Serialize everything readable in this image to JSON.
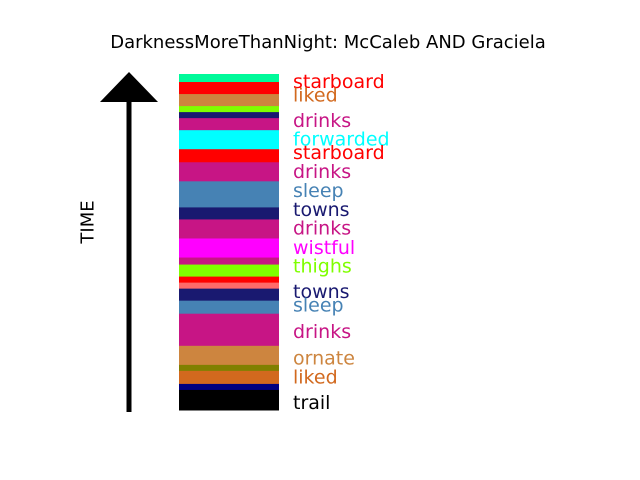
{
  "title": "DarknessMoreThanNight: McCaleb AND Graciela",
  "axis_label": "TIME",
  "bands": [
    {
      "color": "#00FA9A",
      "weight": 8
    },
    {
      "color": "#FF0000",
      "weight": 12
    },
    {
      "color": "#CD853F",
      "weight": 12
    },
    {
      "color": "#7FFF00",
      "weight": 6
    },
    {
      "color": "#191970",
      "weight": 6
    },
    {
      "color": "#C71585",
      "weight": 12
    },
    {
      "color": "#00FFFF",
      "weight": 19
    },
    {
      "color": "#FF0000",
      "weight": 13
    },
    {
      "color": "#C71585",
      "weight": 19
    },
    {
      "color": "#4682B4",
      "weight": 26
    },
    {
      "color": "#191970",
      "weight": 12
    },
    {
      "color": "#C71585",
      "weight": 19
    },
    {
      "color": "#FF00FF",
      "weight": 19
    },
    {
      "color": "#C71585",
      "weight": 7
    },
    {
      "color": "#7FFF00",
      "weight": 12
    },
    {
      "color": "#FF0000",
      "weight": 6
    },
    {
      "color": "#FF6A6A",
      "weight": 6
    },
    {
      "color": "#191970",
      "weight": 12
    },
    {
      "color": "#4682B4",
      "weight": 13
    },
    {
      "color": "#C71585",
      "weight": 32
    },
    {
      "color": "#CD853F",
      "weight": 19
    },
    {
      "color": "#808000",
      "weight": 6
    },
    {
      "color": "#D2691E",
      "weight": 13
    },
    {
      "color": "#000080",
      "weight": 6
    },
    {
      "color": "#000000",
      "weight": 20
    }
  ],
  "words": [
    {
      "text": "starboard",
      "color": "#FF0000",
      "pos": 0.025
    },
    {
      "text": "liked",
      "color": "#D2691E",
      "pos": 0.065
    },
    {
      "text": "drinks",
      "color": "#C71585",
      "pos": 0.142
    },
    {
      "text": "forwarded",
      "color": "#00FFFF",
      "pos": 0.197
    },
    {
      "text": "starboard",
      "color": "#FF0000",
      "pos": 0.236
    },
    {
      "text": "drinks",
      "color": "#C71585",
      "pos": 0.293
    },
    {
      "text": "sleep",
      "color": "#4682B4",
      "pos": 0.35
    },
    {
      "text": "towns",
      "color": "#191970",
      "pos": 0.406
    },
    {
      "text": "drinks",
      "color": "#C71585",
      "pos": 0.462
    },
    {
      "text": "wistful",
      "color": "#FF00FF",
      "pos": 0.519
    },
    {
      "text": "thighs",
      "color": "#7FFF00",
      "pos": 0.575
    },
    {
      "text": "towns",
      "color": "#191970",
      "pos": 0.65
    },
    {
      "text": "sleep",
      "color": "#4682B4",
      "pos": 0.69
    },
    {
      "text": "drinks",
      "color": "#C71585",
      "pos": 0.77
    },
    {
      "text": "ornate",
      "color": "#CD853F",
      "pos": 0.848
    },
    {
      "text": "liked",
      "color": "#D2691E",
      "pos": 0.905
    },
    {
      "text": "trail",
      "color": "#000000",
      "pos": 0.98
    }
  ]
}
